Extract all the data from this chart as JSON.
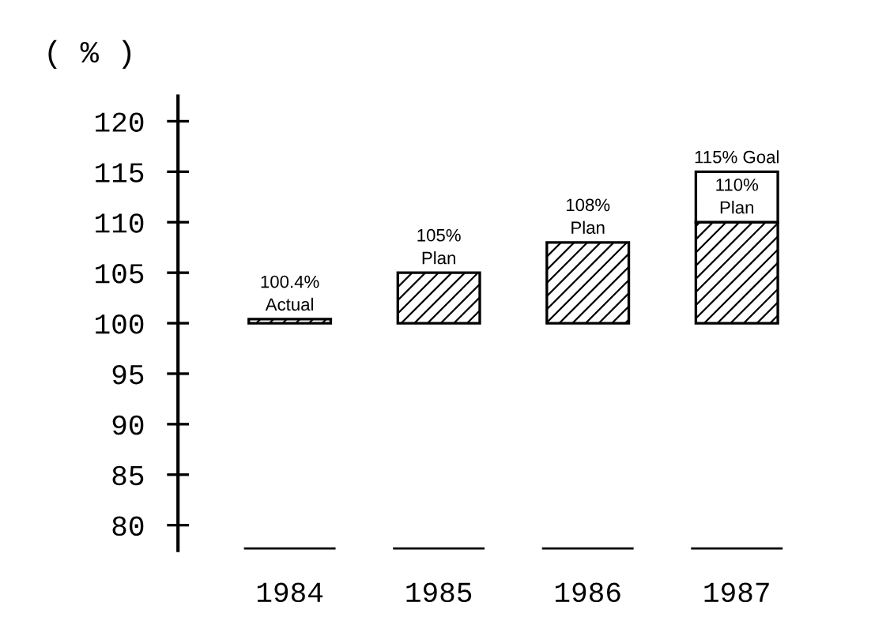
{
  "chart_data": {
    "type": "bar",
    "ylabel": "( % )",
    "categories": [
      "1984",
      "1985",
      "1986",
      "1987"
    ],
    "series": [
      {
        "color": "#000000",
        "base": [
          100,
          100,
          100,
          100
        ],
        "values": [
          0.4,
          5,
          8,
          10
        ],
        "value_labels": [
          "100.4%\nActual",
          "105%\nPlan",
          "108%\nPlan",
          "110%\nPlan"
        ]
      },
      {
        "color": "#ffffff",
        "base": [
          null,
          null,
          null,
          110
        ],
        "values": [
          null,
          null,
          null,
          5
        ],
        "value_labels": [
          null,
          null,
          null,
          "115% Goal"
        ]
      }
    ],
    "ylim": [
      77.5,
      122.5
    ],
    "yticks": [
      80,
      85,
      90,
      95,
      100,
      105,
      110,
      115,
      120
    ],
    "grid": false,
    "legend": false
  }
}
